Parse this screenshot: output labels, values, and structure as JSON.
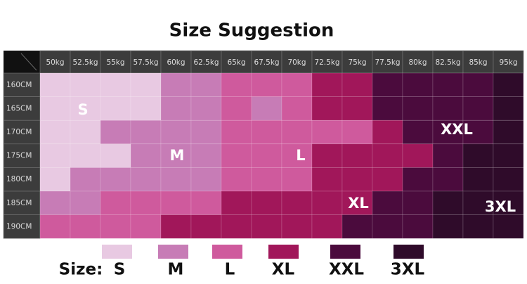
{
  "title": "Size Suggestion",
  "table": {
    "weights": [
      "50kg",
      "52.5kg",
      "55kg",
      "57.5kg",
      "60kg",
      "62.5kg",
      "65kg",
      "67.5kg",
      "70kg",
      "72.5kg",
      "75kg",
      "77.5kg",
      "80kg",
      "82.5kg",
      "85kg",
      "95kg"
    ],
    "heights": [
      "160CM",
      "165CM",
      "170CM",
      "175CM",
      "180CM",
      "185CM",
      "190CM"
    ],
    "grid": [
      [
        0,
        0,
        0,
        0,
        1,
        1,
        2,
        2,
        2,
        3,
        3,
        4,
        4,
        4,
        4,
        5
      ],
      [
        0,
        0,
        0,
        0,
        1,
        1,
        2,
        1,
        2,
        3,
        3,
        4,
        4,
        4,
        4,
        5
      ],
      [
        0,
        0,
        1,
        1,
        1,
        1,
        2,
        2,
        2,
        2,
        2,
        3,
        4,
        4,
        4,
        5
      ],
      [
        0,
        0,
        0,
        1,
        1,
        1,
        2,
        2,
        2,
        3,
        3,
        3,
        3,
        4,
        5,
        5
      ],
      [
        0,
        1,
        1,
        1,
        1,
        1,
        2,
        2,
        2,
        3,
        3,
        3,
        4,
        4,
        5,
        5
      ],
      [
        1,
        1,
        2,
        2,
        2,
        2,
        3,
        3,
        3,
        3,
        3,
        4,
        4,
        5,
        5,
        5
      ],
      [
        2,
        2,
        2,
        2,
        3,
        3,
        3,
        3,
        3,
        3,
        4,
        4,
        4,
        5,
        5,
        5
      ]
    ],
    "grid_labels": [
      "S",
      "M",
      "L",
      "XL",
      "XXL",
      "3XL"
    ]
  },
  "legend": {
    "label": "Size:",
    "sizes": [
      "S",
      "M",
      "L",
      "XL",
      "XXL",
      "3XL"
    ],
    "colors": [
      "#e8c9e2",
      "#c77cb6",
      "#cf5a9d",
      "#a1175a",
      "#4b0b3d",
      "#2f0b2a"
    ]
  }
}
